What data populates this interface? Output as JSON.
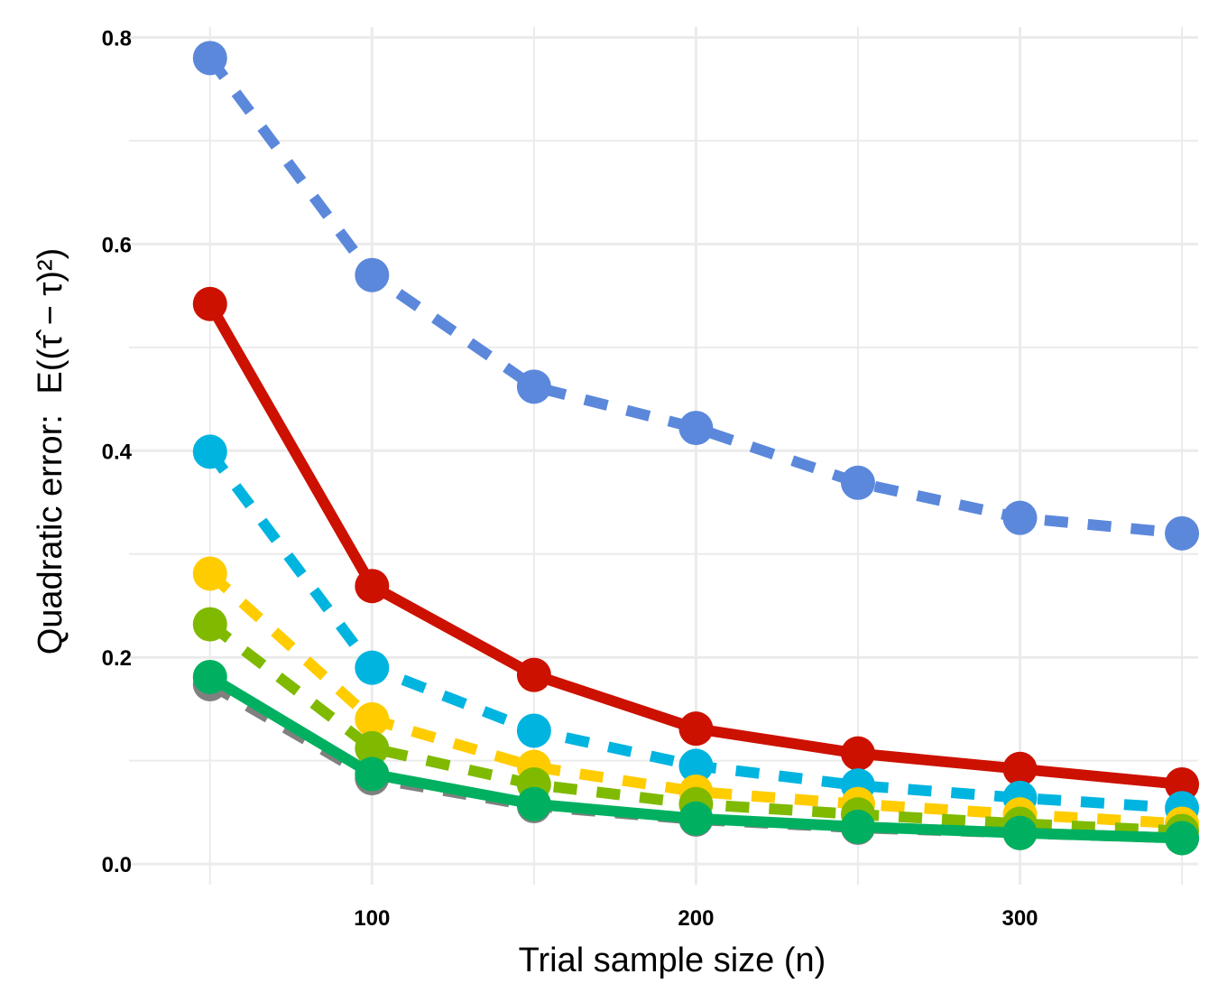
{
  "chart_data": {
    "type": "line",
    "title": "",
    "xlabel": "Trial sample size (n)",
    "ylabel_prefix": "Quadratic error:",
    "ylabel_formula": "E((τ̂ − τ)²)",
    "xlim": [
      25,
      355
    ],
    "ylim": [
      -0.02,
      0.81
    ],
    "x_ticks": [
      100,
      200,
      300
    ],
    "x_tick_labels": [
      "100",
      "200",
      "300"
    ],
    "y_ticks": [
      0.0,
      0.2,
      0.4,
      0.6,
      0.8
    ],
    "y_tick_labels": [
      "0.0",
      "0.2",
      "0.4",
      "0.6",
      "0.8"
    ],
    "x_minor_gridlines": [
      50,
      150,
      250,
      350
    ],
    "y_minor_gridlines": [
      0.1,
      0.3,
      0.5,
      0.7
    ],
    "grid": true,
    "legend": "none",
    "x": [
      50,
      100,
      150,
      200,
      250,
      300,
      350
    ],
    "series": [
      {
        "color": "#5b88db",
        "dashed": true,
        "values": [
          0.78,
          0.57,
          0.462,
          0.422,
          0.369,
          0.335,
          0.32
        ]
      },
      {
        "color": "#cc1100",
        "dashed": false,
        "values": [
          0.542,
          0.269,
          0.183,
          0.131,
          0.107,
          0.092,
          0.077
        ]
      },
      {
        "color": "#00b4e0",
        "dashed": true,
        "values": [
          0.399,
          0.19,
          0.129,
          0.095,
          0.076,
          0.064,
          0.054
        ]
      },
      {
        "color": "#ffcc00",
        "dashed": true,
        "values": [
          0.281,
          0.14,
          0.094,
          0.07,
          0.058,
          0.048,
          0.039
        ]
      },
      {
        "color": "#7fba00",
        "dashed": true,
        "values": [
          0.232,
          0.112,
          0.077,
          0.058,
          0.048,
          0.039,
          0.032
        ]
      },
      {
        "color": "#808080",
        "dashed": true,
        "values": [
          0.174,
          0.083,
          0.056,
          0.043,
          0.035,
          0.03,
          0.025
        ]
      },
      {
        "color": "#00b060",
        "dashed": false,
        "values": [
          0.181,
          0.087,
          0.058,
          0.044,
          0.036,
          0.03,
          0.025
        ]
      }
    ]
  }
}
